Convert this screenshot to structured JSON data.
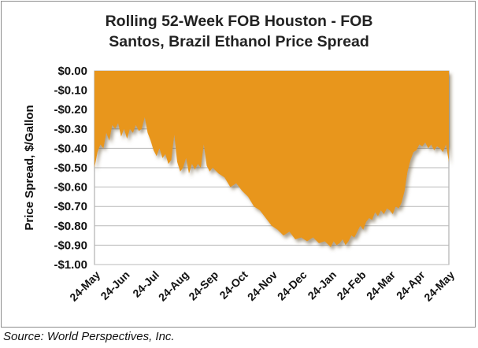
{
  "chart_data": {
    "type": "area",
    "title_line1": "Rolling 52-Week FOB Houston - FOB",
    "title_line2": "Santos, Brazil Ethanol Price Spread",
    "ylabel": "Price Spread, $/Gallon",
    "xlabel": "",
    "ylim": [
      -1.0,
      0.0
    ],
    "yticks": [
      0.0,
      -0.1,
      -0.2,
      -0.3,
      -0.4,
      -0.5,
      -0.6,
      -0.7,
      -0.8,
      -0.9,
      -1.0
    ],
    "ytick_labels": [
      "$0.00",
      "-$0.10",
      "-$0.20",
      "-$0.30",
      "-$0.40",
      "-$0.50",
      "-$0.60",
      "-$0.70",
      "-$0.80",
      "-$0.90",
      "-$1.00"
    ],
    "categories": [
      "24-May",
      "24-Jun",
      "24-Jul",
      "24-Aug",
      "24-Sep",
      "24-Oct",
      "24-Nov",
      "24-Dec",
      "24-Jan",
      "24-Feb",
      "24-Mar",
      "24-Apr",
      "24-May"
    ],
    "grid": "horizontal",
    "fill_color": "#e8961e",
    "series": [
      {
        "x": [
          0,
          0.1,
          0.2,
          0.3,
          0.4,
          0.5,
          0.6,
          0.7,
          0.8,
          0.9,
          1.0,
          1.1,
          1.2,
          1.3,
          1.4,
          1.5,
          1.6,
          1.7,
          1.8,
          1.9,
          2.0,
          2.1,
          2.2,
          2.3,
          2.4,
          2.5,
          2.6,
          2.7,
          2.8,
          2.9,
          3.0,
          3.1,
          3.2,
          3.3,
          3.4,
          3.5,
          3.6,
          3.7,
          3.8,
          3.9,
          4.0,
          4.2,
          4.4,
          4.6,
          4.8,
          5.0,
          5.2,
          5.4,
          5.6,
          5.8,
          6.0,
          6.2,
          6.4,
          6.6,
          6.8,
          7.0,
          7.2,
          7.4,
          7.6,
          7.8,
          8.0,
          8.1,
          8.2,
          8.3,
          8.4,
          8.5,
          8.6,
          8.7,
          8.8,
          8.9,
          9.0,
          9.1,
          9.2,
          9.3,
          9.4,
          9.5,
          9.6,
          9.7,
          9.8,
          9.9,
          10.0,
          10.1,
          10.2,
          10.3,
          10.4,
          10.5,
          10.6,
          10.7,
          10.8,
          10.9,
          11.0,
          11.1,
          11.2,
          11.3,
          11.4,
          11.5,
          11.6,
          11.7,
          11.8,
          11.9,
          12.0
        ],
        "values": [
          -0.5,
          -0.42,
          -0.38,
          -0.4,
          -0.32,
          -0.36,
          -0.28,
          -0.3,
          -0.27,
          -0.34,
          -0.3,
          -0.35,
          -0.3,
          -0.32,
          -0.28,
          -0.31,
          -0.3,
          -0.24,
          -0.32,
          -0.36,
          -0.41,
          -0.44,
          -0.4,
          -0.45,
          -0.43,
          -0.48,
          -0.46,
          -0.33,
          -0.47,
          -0.52,
          -0.5,
          -0.45,
          -0.53,
          -0.48,
          -0.51,
          -0.48,
          -0.5,
          -0.38,
          -0.49,
          -0.52,
          -0.5,
          -0.53,
          -0.55,
          -0.6,
          -0.58,
          -0.62,
          -0.65,
          -0.7,
          -0.72,
          -0.76,
          -0.8,
          -0.82,
          -0.85,
          -0.83,
          -0.87,
          -0.86,
          -0.88,
          -0.86,
          -0.89,
          -0.88,
          -0.91,
          -0.88,
          -0.9,
          -0.89,
          -0.87,
          -0.9,
          -0.88,
          -0.85,
          -0.86,
          -0.83,
          -0.8,
          -0.82,
          -0.78,
          -0.76,
          -0.77,
          -0.73,
          -0.75,
          -0.72,
          -0.74,
          -0.71,
          -0.72,
          -0.74,
          -0.7,
          -0.71,
          -0.68,
          -0.62,
          -0.52,
          -0.46,
          -0.42,
          -0.41,
          -0.38,
          -0.39,
          -0.37,
          -0.4,
          -0.38,
          -0.41,
          -0.39,
          -0.4,
          -0.42,
          -0.38,
          -0.47
        ]
      }
    ]
  },
  "source": "Source: World Perspectives, Inc."
}
